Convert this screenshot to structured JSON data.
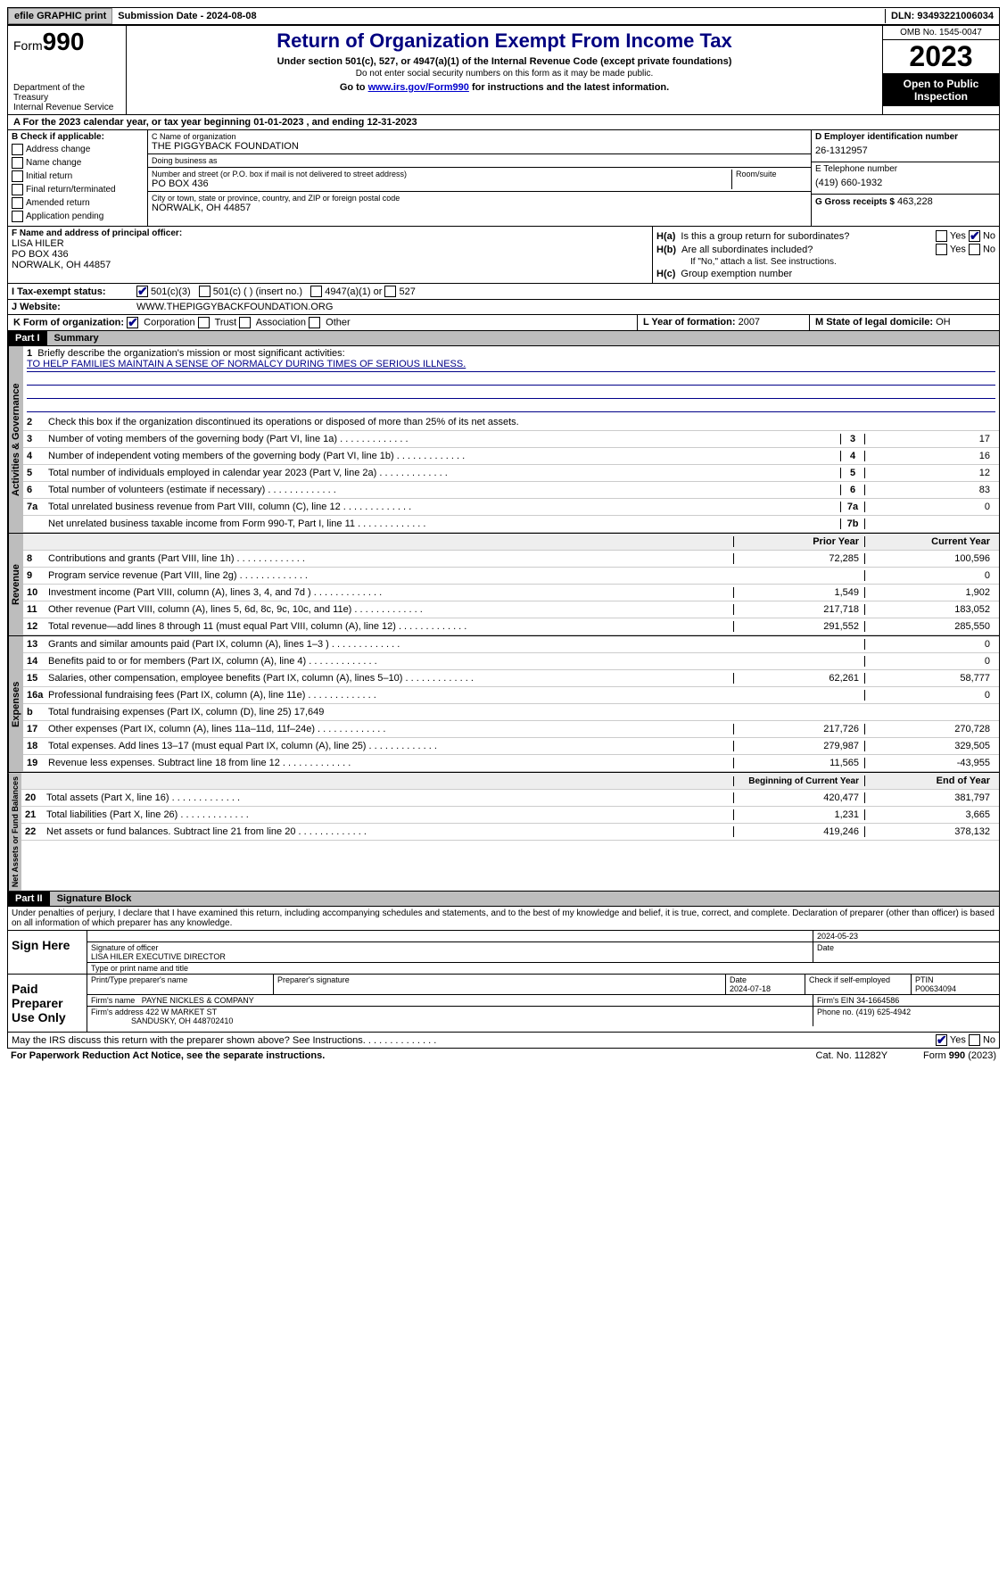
{
  "topbar": {
    "efile": "efile GRAPHIC print",
    "submission": "Submission Date - 2024-08-08",
    "dln": "DLN: 93493221006034"
  },
  "header": {
    "form_label": "Form",
    "form_num": "990",
    "title": "Return of Organization Exempt From Income Tax",
    "sub": "Under section 501(c), 527, or 4947(a)(1) of the Internal Revenue Code (except private foundations)",
    "sub2": "Do not enter social security numbers on this form as it may be made public.",
    "goto_pre": "Go to ",
    "goto_link": "www.irs.gov/Form990",
    "goto_post": " for instructions and the latest information.",
    "dept": "Department of the Treasury",
    "irs": "Internal Revenue Service",
    "omb": "OMB No. 1545-0047",
    "year": "2023",
    "open": "Open to Public Inspection"
  },
  "rowA": "A For the 2023 calendar year, or tax year beginning 01-01-2023   , and ending 12-31-2023",
  "B": {
    "label": "B Check if applicable:",
    "items": [
      "Address change",
      "Name change",
      "Initial return",
      "Final return/terminated",
      "Amended return",
      "Application pending"
    ]
  },
  "C": {
    "name_lab": "C Name of organization",
    "name": "THE PIGGYBACK FOUNDATION",
    "dba_lab": "Doing business as",
    "dba": "",
    "street_lab": "Number and street (or P.O. box if mail is not delivered to street address)",
    "room_lab": "Room/suite",
    "street": "PO BOX 436",
    "city_lab": "City or town, state or province, country, and ZIP or foreign postal code",
    "city": "NORWALK, OH  44857"
  },
  "D": {
    "label": "D Employer identification number",
    "value": "26-1312957"
  },
  "E": {
    "label": "E Telephone number",
    "value": "(419) 660-1932"
  },
  "G": {
    "label": "G Gross receipts $",
    "value": "463,228"
  },
  "F": {
    "label": "F  Name and address of principal officer:",
    "line1": "LISA HILER",
    "line2": "PO BOX 436",
    "line3": "NORWALK, OH  44857"
  },
  "H": {
    "a_lab": "H(a)",
    "a_text": "Is this a group return for subordinates?",
    "a_yes": "Yes",
    "a_no": "No",
    "b_lab": "H(b)",
    "b_text": "Are all subordinates included?",
    "b_note": "If \"No,\" attach a list. See instructions.",
    "c_lab": "H(c)",
    "c_text": "Group exemption number"
  },
  "I": {
    "label": "I   Tax-exempt status:",
    "o1": "501(c)(3)",
    "o2": "501(c) (  ) (insert no.)",
    "o3": "4947(a)(1) or",
    "o4": "527"
  },
  "J": {
    "label": "J   Website:",
    "value": "WWW.THEPIGGYBACKFOUNDATION.ORG"
  },
  "K": {
    "label": "K Form of organization:",
    "o1": "Corporation",
    "o2": "Trust",
    "o3": "Association",
    "o4": "Other"
  },
  "L": {
    "label": "L Year of formation:",
    "value": "2007"
  },
  "M": {
    "label": "M State of legal domicile:",
    "value": "OH"
  },
  "part1": {
    "code": "Part I",
    "title": "Summary"
  },
  "gov": {
    "tab": "Activities & Governance",
    "l1": "Briefly describe the organization's mission or most significant activities:",
    "mission": "TO HELP FAMILIES MAINTAIN A SENSE OF NORMALCY DURING TIMES OF SERIOUS ILLNESS.",
    "l2": "Check this box      if the organization discontinued its operations or disposed of more than 25% of its net assets.",
    "lines": [
      {
        "n": "3",
        "desc": "Number of voting members of the governing body (Part VI, line 1a)",
        "cell": "3",
        "val": "17"
      },
      {
        "n": "4",
        "desc": "Number of independent voting members of the governing body (Part VI, line 1b)",
        "cell": "4",
        "val": "16"
      },
      {
        "n": "5",
        "desc": "Total number of individuals employed in calendar year 2023 (Part V, line 2a)",
        "cell": "5",
        "val": "12"
      },
      {
        "n": "6",
        "desc": "Total number of volunteers (estimate if necessary)",
        "cell": "6",
        "val": "83"
      },
      {
        "n": "7a",
        "desc": "Total unrelated business revenue from Part VIII, column (C), line 12",
        "cell": "7a",
        "val": "0"
      },
      {
        "n": "",
        "desc": "Net unrelated business taxable income from Form 990-T, Part I, line 11",
        "cell": "7b",
        "val": ""
      }
    ]
  },
  "rev": {
    "tab": "Revenue",
    "hdr_prior": "Prior Year",
    "hdr_curr": "Current Year",
    "lines": [
      {
        "n": "8",
        "desc": "Contributions and grants (Part VIII, line 1h)",
        "p": "72,285",
        "c": "100,596"
      },
      {
        "n": "9",
        "desc": "Program service revenue (Part VIII, line 2g)",
        "p": "",
        "c": "0"
      },
      {
        "n": "10",
        "desc": "Investment income (Part VIII, column (A), lines 3, 4, and 7d )",
        "p": "1,549",
        "c": "1,902"
      },
      {
        "n": "11",
        "desc": "Other revenue (Part VIII, column (A), lines 5, 6d, 8c, 9c, 10c, and 11e)",
        "p": "217,718",
        "c": "183,052"
      },
      {
        "n": "12",
        "desc": "Total revenue—add lines 8 through 11 (must equal Part VIII, column (A), line 12)",
        "p": "291,552",
        "c": "285,550"
      }
    ]
  },
  "exp": {
    "tab": "Expenses",
    "lines": [
      {
        "n": "13",
        "desc": "Grants and similar amounts paid (Part IX, column (A), lines 1–3 )",
        "p": "",
        "c": "0"
      },
      {
        "n": "14",
        "desc": "Benefits paid to or for members (Part IX, column (A), line 4)",
        "p": "",
        "c": "0"
      },
      {
        "n": "15",
        "desc": "Salaries, other compensation, employee benefits (Part IX, column (A), lines 5–10)",
        "p": "62,261",
        "c": "58,777"
      },
      {
        "n": "16a",
        "desc": "Professional fundraising fees (Part IX, column (A), line 11e)",
        "p": "",
        "c": "0"
      },
      {
        "n": "b",
        "desc": "Total fundraising expenses (Part IX, column (D), line 25) 17,649",
        "p": "gray",
        "c": "gray"
      },
      {
        "n": "17",
        "desc": "Other expenses (Part IX, column (A), lines 11a–11d, 11f–24e)",
        "p": "217,726",
        "c": "270,728"
      },
      {
        "n": "18",
        "desc": "Total expenses. Add lines 13–17 (must equal Part IX, column (A), line 25)",
        "p": "279,987",
        "c": "329,505"
      },
      {
        "n": "19",
        "desc": "Revenue less expenses. Subtract line 18 from line 12",
        "p": "11,565",
        "c": "-43,955"
      }
    ]
  },
  "net": {
    "tab": "Net Assets or Fund Balances",
    "hdr_beg": "Beginning of Current Year",
    "hdr_end": "End of Year",
    "lines": [
      {
        "n": "20",
        "desc": "Total assets (Part X, line 16)",
        "p": "420,477",
        "c": "381,797"
      },
      {
        "n": "21",
        "desc": "Total liabilities (Part X, line 26)",
        "p": "1,231",
        "c": "3,665"
      },
      {
        "n": "22",
        "desc": "Net assets or fund balances. Subtract line 21 from line 20",
        "p": "419,246",
        "c": "378,132"
      }
    ]
  },
  "part2": {
    "code": "Part II",
    "title": "Signature Block"
  },
  "sig": {
    "perjury": "Under penalties of perjury, I declare that I have examined this return, including accompanying schedules and statements, and to the best of my knowledge and belief, it is true, correct, and complete. Declaration of preparer (other than officer) is based on all information of which preparer has any knowledge.",
    "here": "Sign Here",
    "sig_officer_lab": "Signature of officer",
    "date_lab": "Date",
    "officer_date": "2024-05-23",
    "officer_name": "LISA HILER  EXECUTIVE DIRECTOR",
    "type_lab": "Type or print name and title",
    "paid": "Paid Preparer Use Only",
    "prep_name_lab": "Print/Type preparer's name",
    "prep_sig_lab": "Preparer's signature",
    "prep_date_lab": "Date",
    "prep_date": "2024-07-18",
    "check_self": "Check       if self-employed",
    "ptin_lab": "PTIN",
    "ptin": "P00634094",
    "firm_name_lab": "Firm's name",
    "firm_name": "PAYNE NICKLES & COMPANY",
    "firm_ein_lab": "Firm's EIN",
    "firm_ein": "34-1664586",
    "firm_addr_lab": "Firm's address",
    "firm_addr1": "422 W MARKET ST",
    "firm_addr2": "SANDUSKY, OH  448702410",
    "phone_lab": "Phone no.",
    "phone": "(419) 625-4942",
    "discuss": "May the IRS discuss this return with the preparer shown above? See Instructions.",
    "yes": "Yes",
    "no": "No"
  },
  "footer": {
    "left": "For Paperwork Reduction Act Notice, see the separate instructions.",
    "mid": "Cat. No. 11282Y",
    "right_pre": "Form ",
    "right_bold": "990",
    "right_post": " (2023)"
  }
}
